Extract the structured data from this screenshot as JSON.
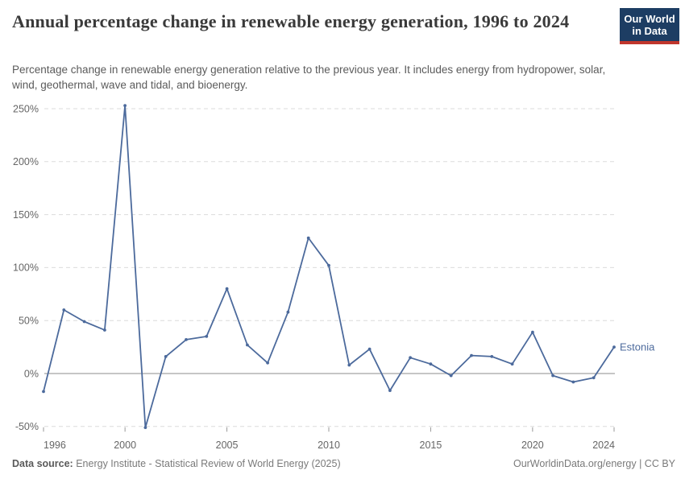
{
  "header": {
    "title": "Annual percentage change in renewable energy generation, 1996 to 2024",
    "subtitle": "Percentage change in renewable energy generation relative to the previous year. It includes energy from hydropower, solar, wind, geothermal, wave and tidal, and bioenergy.",
    "logo_line1": "Our World",
    "logo_line2": "in Data"
  },
  "chart_data": {
    "type": "line",
    "title": "Annual percentage change in renewable energy generation, 1996 to 2024",
    "unit": "%",
    "x": [
      1996,
      1997,
      1998,
      1999,
      2000,
      2001,
      2002,
      2003,
      2004,
      2005,
      2006,
      2007,
      2008,
      2009,
      2010,
      2011,
      2012,
      2013,
      2014,
      2015,
      2016,
      2017,
      2018,
      2019,
      2020,
      2021,
      2022,
      2023,
      2024
    ],
    "series": [
      {
        "name": "Estonia",
        "values": [
          -17,
          60,
          49,
          41,
          253,
          -51,
          16,
          32,
          35,
          80,
          27,
          10,
          58,
          128,
          102,
          8,
          23,
          -16,
          15,
          9,
          -2,
          17,
          16,
          9,
          39,
          -2,
          -8,
          -4,
          25
        ]
      }
    ],
    "ylim": [
      -50,
      250
    ],
    "xlim": [
      1996,
      2024
    ],
    "y_ticks": [
      {
        "value": 250,
        "label": "250%"
      },
      {
        "value": 200,
        "label": "200%"
      },
      {
        "value": 150,
        "label": "150%"
      },
      {
        "value": 100,
        "label": "100%"
      },
      {
        "value": 50,
        "label": "50%"
      },
      {
        "value": 0,
        "label": "0%"
      },
      {
        "value": -50,
        "label": "-50%"
      }
    ],
    "x_ticks": [
      1996,
      2000,
      2005,
      2010,
      2015,
      2020,
      2024
    ],
    "grid": "horizontal-dashed",
    "legend_position": "end-of-line-label"
  },
  "colors": {
    "line": "#4C6A9C",
    "entity_label": "#4C6A9C",
    "grid": "#dbdbdb",
    "zero_line": "#a5a5a5",
    "tick_mark": "#999999",
    "axis_text": "#666666",
    "logo_background": "#1d3d63",
    "logo_accent": "#c0362c"
  },
  "footer": {
    "data_source_label": "Data source:",
    "data_source_value": "Energy Institute - Statistical Review of World Energy (2025)",
    "attribution_link": "OurWorldinData.org/energy",
    "attribution_suffix": " | CC BY"
  }
}
